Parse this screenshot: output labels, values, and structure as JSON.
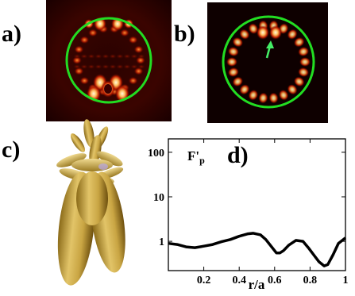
{
  "labels": {
    "a": "a)",
    "b": "b)",
    "c": "c)",
    "d": "d)"
  },
  "plot_d": {
    "inline_label": "F'",
    "inline_label_sub": "p"
  },
  "colors": {
    "ring": "#22dd22",
    "arrow": "#44ee66",
    "glow": "#ffd890",
    "curve": "#000000",
    "lobe": "#c8a542"
  },
  "chart_data": {
    "type": "line",
    "title": "",
    "xlabel": "r/a",
    "ylabel": "",
    "yscale": "log",
    "xlim": [
      0,
      1
    ],
    "ylim": [
      0.22,
      200
    ],
    "xticks": [
      "0.2",
      "0.4",
      "0.6",
      "0.8",
      "1"
    ],
    "yticks": [
      "1",
      "10",
      "100"
    ],
    "x": [
      0.0,
      0.05,
      0.1,
      0.15,
      0.2,
      0.25,
      0.3,
      0.35,
      0.4,
      0.45,
      0.48,
      0.52,
      0.55,
      0.58,
      0.61,
      0.63,
      0.65,
      0.68,
      0.72,
      0.76,
      0.79,
      0.82,
      0.85,
      0.88,
      0.9,
      0.93,
      0.96,
      1.0
    ],
    "values": [
      0.9,
      0.85,
      0.75,
      0.72,
      0.78,
      0.85,
      0.98,
      1.1,
      1.3,
      1.48,
      1.52,
      1.4,
      1.1,
      0.78,
      0.55,
      0.55,
      0.62,
      0.82,
      1.05,
      1.0,
      0.72,
      0.5,
      0.35,
      0.28,
      0.3,
      0.5,
      0.9,
      1.2
    ]
  }
}
